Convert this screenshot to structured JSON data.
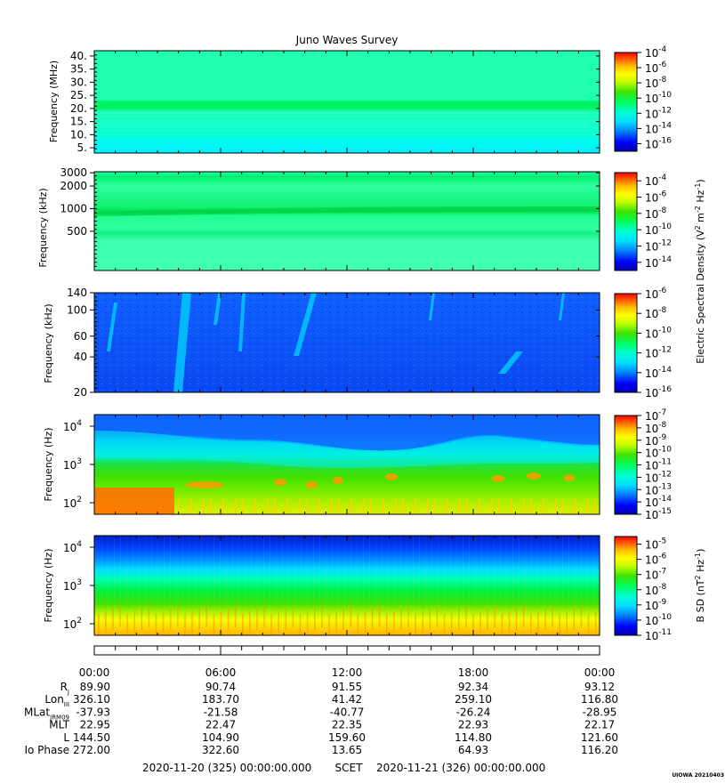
{
  "title": "Juno Waves Survey",
  "colors": {
    "spectral_stops": [
      "#0000b0",
      "#0000ff",
      "#0080ff",
      "#00e0ff",
      "#00ffd0",
      "#00ff60",
      "#40e000",
      "#c0ff00",
      "#ffff00",
      "#ffc000",
      "#ff6000",
      "#ff0000"
    ]
  },
  "chart_data": [
    {
      "type": "heatmap",
      "name": "panel-1",
      "ylabel": "Frequency (MHz)",
      "ylim": [
        3,
        42
      ],
      "yticks": [
        "40.",
        "35.",
        "30.",
        "25.",
        "20.",
        "15.",
        "10.",
        "5."
      ],
      "ytick_values": [
        40,
        35,
        30,
        25,
        20,
        15,
        10,
        5
      ],
      "colorbar": {
        "range_exp": [
          -17,
          -4
        ],
        "labels": [
          "-4",
          "-6",
          "-8",
          "-10",
          "-12",
          "-14",
          "-16"
        ]
      }
    },
    {
      "type": "heatmap",
      "name": "panel-2",
      "ylabel": "Frequency (kHz)",
      "scale": "log",
      "ylim": [
        150,
        3100
      ],
      "yticks": [
        "3000",
        "2000",
        "1000",
        "500"
      ],
      "ytick_values": [
        3000,
        2000,
        1000,
        500
      ],
      "colorbar": {
        "range_exp": [
          -15,
          -3
        ],
        "labels": [
          "-4",
          "-6",
          "-8",
          "-10",
          "-12",
          "-14"
        ]
      }
    },
    {
      "type": "heatmap",
      "name": "panel-3",
      "ylabel": "Frequency (kHz)",
      "scale": "log",
      "ylim": [
        20,
        140
      ],
      "yticks": [
        "140",
        "100",
        "60",
        "40",
        "20"
      ],
      "ytick_values": [
        140,
        100,
        60,
        40,
        20
      ],
      "colorbar": {
        "range_exp": [
          -16,
          -6
        ],
        "labels": [
          "-6",
          "-8",
          "-10",
          "-12",
          "-14",
          "-16"
        ]
      }
    },
    {
      "type": "heatmap",
      "name": "panel-4",
      "ylabel": "Frequency (Hz)",
      "scale": "log",
      "ylim": [
        50,
        20000
      ],
      "yticks": [
        "4",
        "3",
        "2"
      ],
      "ytick_values": [
        10000,
        1000,
        100
      ],
      "colorbar": {
        "range_exp": [
          -15,
          -7
        ],
        "labels": [
          "-7",
          "-8",
          "-9",
          "-10",
          "-11",
          "-12",
          "-13",
          "-14",
          "-15"
        ]
      }
    },
    {
      "type": "heatmap",
      "name": "panel-5",
      "ylabel": "Frequency (Hz)",
      "scale": "log",
      "ylim": [
        50,
        20000
      ],
      "yticks": [
        "4",
        "3",
        "2"
      ],
      "ytick_values": [
        10000,
        1000,
        100
      ],
      "colorbar": {
        "range_exp": [
          -11,
          -4.5
        ],
        "labels": [
          "-5",
          "-6",
          "-7",
          "-8",
          "-9",
          "-10",
          "-11"
        ]
      }
    }
  ],
  "colorbar_base": "10",
  "colorbar_label_top": "Electric Spectral Density (V",
  "colorbar_label_top_sup1": "2",
  "colorbar_label_top_mid": " m",
  "colorbar_label_top_sup2": "-2",
  "colorbar_label_top_mid2": " Hz",
  "colorbar_label_top_sup3": "-1",
  "colorbar_label_top_end": ")",
  "colorbar_label_bottom": "B SD (nT",
  "colorbar_label_bottom_sup1": "2",
  "colorbar_label_bottom_mid": " Hz",
  "colorbar_label_bottom_sup2": "-1",
  "colorbar_label_bottom_end": ")",
  "time_axis": {
    "labels": [
      "00:00",
      "06:00",
      "12:00",
      "18:00",
      "00:00"
    ]
  },
  "ephemeris": [
    {
      "label": "R",
      "sub": "J",
      "values": [
        "89.90",
        "90.74",
        "91.55",
        "92.34",
        "93.12"
      ]
    },
    {
      "label": "Lon",
      "sub": "III",
      "values": [
        "326.10",
        "183.70",
        "41.42",
        "259.10",
        "116.80"
      ]
    },
    {
      "label": "MLat",
      "sub": "JRM09",
      "values": [
        "-37.93",
        "-21.58",
        "-40.77",
        "-26.24",
        "-28.95"
      ]
    },
    {
      "label": "MLT",
      "sub": "",
      "values": [
        "22.95",
        "22.47",
        "22.35",
        "22.93",
        "22.17"
      ]
    },
    {
      "label": "L",
      "sub": "",
      "values": [
        "144.50",
        "104.90",
        "159.60",
        "114.80",
        "121.60"
      ]
    },
    {
      "label": "Io Phase",
      "sub": "",
      "values": [
        "272.00",
        "322.60",
        "13.65",
        "64.93",
        "116.20"
      ]
    }
  ],
  "footer": {
    "start": "2020-11-20 (325) 00:00:00.000",
    "center": "SCET",
    "end": "2020-11-21 (326) 00:00:00.000"
  },
  "credit": "UIOWA 20210403"
}
